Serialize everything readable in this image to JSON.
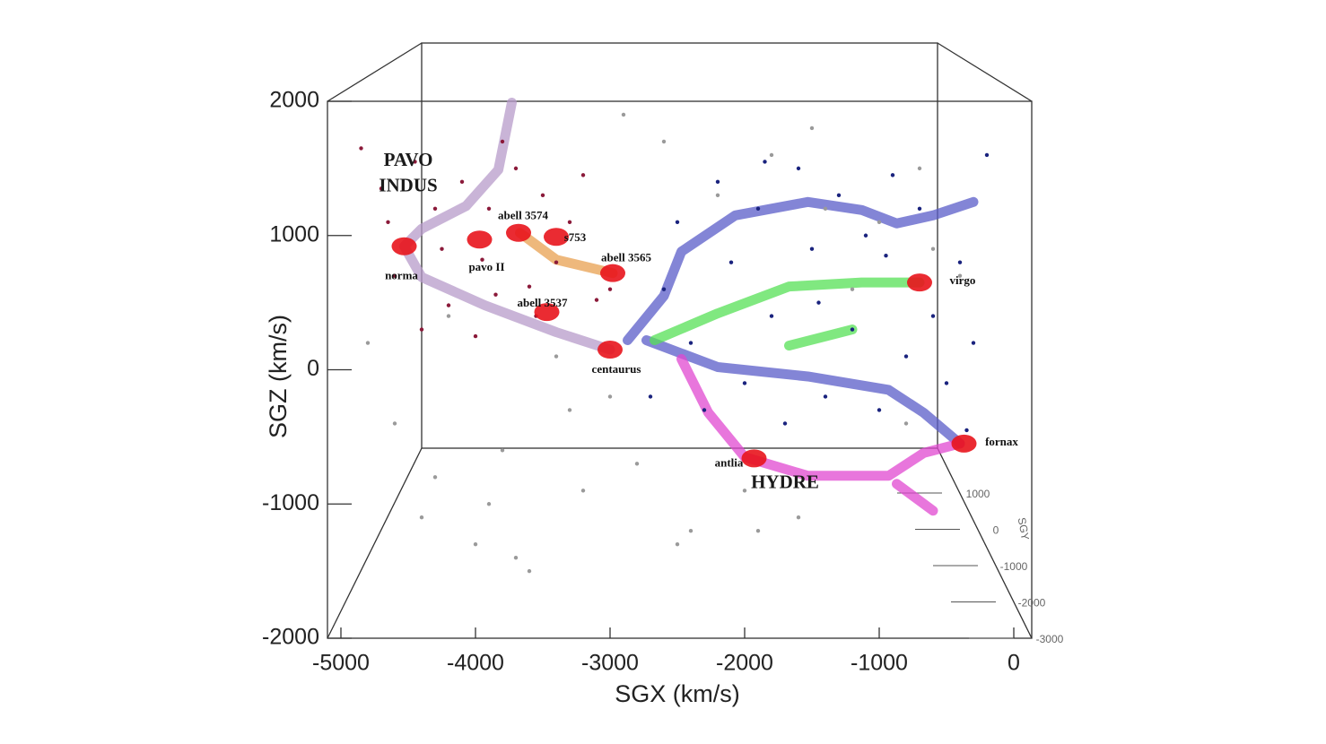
{
  "chart_data": {
    "type": "scatter",
    "x_label": "SGX (km/s)",
    "y_label": "SGZ (km/s)",
    "z_label": "SGY",
    "xlim": [
      -5000,
      0
    ],
    "xticks": [
      -5000,
      -4000,
      -3000,
      -2000,
      -1000,
      0
    ],
    "ylim": [
      -2000,
      2000
    ],
    "yticks": [
      -2000,
      -1000,
      0,
      1000,
      2000
    ],
    "zlim": [
      -3000,
      1000
    ],
    "zticks": [
      -3000,
      -2000,
      -1000,
      0,
      1000
    ],
    "series": [
      {
        "color": "#8b1a3a",
        "x": [
          -4850,
          -4700,
          -4600,
          -4450,
          -4300,
          -4200,
          -4100,
          -3950,
          -3850,
          -3700,
          -3600,
          -3500,
          -3300,
          -3200,
          -3100,
          -4400,
          -4000,
          -3800,
          -3400,
          -4650,
          -3900,
          -3550,
          -4250,
          -3000
        ],
        "values": [
          1650,
          1350,
          700,
          1550,
          1200,
          480,
          1400,
          820,
          560,
          1500,
          620,
          1300,
          1100,
          1450,
          520,
          300,
          250,
          1700,
          800,
          1100,
          1200,
          400,
          900,
          600
        ]
      },
      {
        "color": "#1a237e",
        "x": [
          -2600,
          -2500,
          -2400,
          -2300,
          -2200,
          -2100,
          -2000,
          -1900,
          -1800,
          -1700,
          -1600,
          -1500,
          -1400,
          -1300,
          -1200,
          -1100,
          -1000,
          -900,
          -800,
          -700,
          -600,
          -500,
          -400,
          -300,
          -200,
          -2700,
          -1850,
          -1450,
          -950,
          -350
        ],
        "values": [
          600,
          1100,
          200,
          -300,
          1400,
          800,
          -100,
          1200,
          400,
          -400,
          1500,
          900,
          -200,
          1300,
          300,
          1000,
          -300,
          1450,
          100,
          1200,
          400,
          -100,
          800,
          200,
          1600,
          -200,
          1550,
          500,
          850,
          -450
        ]
      },
      {
        "color": "#9a9a9a",
        "x": [
          -4800,
          -4600,
          -4400,
          -4200,
          -4000,
          -3800,
          -3600,
          -3400,
          -3200,
          -3000,
          -2800,
          -2600,
          -2400,
          -2200,
          -2000,
          -1800,
          -1600,
          -1400,
          -1200,
          -1000,
          -800,
          -600,
          -400,
          -3900,
          -3700,
          -2500,
          -1900,
          -1500,
          -4300,
          -700,
          -2900,
          -3300
        ],
        "values": [
          200,
          -400,
          -1100,
          400,
          -1300,
          -600,
          -1500,
          100,
          -900,
          -200,
          -700,
          1700,
          -1200,
          1300,
          -900,
          1600,
          -1100,
          1200,
          600,
          1100,
          -400,
          900,
          700,
          -1000,
          -1400,
          -1300,
          -1200,
          1800,
          -800,
          1500,
          1900,
          -300
        ]
      }
    ],
    "filaments": [
      {
        "color": "#b79bc9",
        "x": [
          -3730,
          -3830,
          -4070,
          -4400,
          -4530,
          null,
          -4530,
          -4400,
          -3930,
          -3400,
          -3000
        ],
        "values": [
          1990,
          1490,
          1220,
          1050,
          920,
          null,
          920,
          690,
          480,
          280,
          150
        ]
      },
      {
        "color": "#e8a050",
        "x": [
          -3670,
          -3400,
          -2980
        ],
        "values": [
          1020,
          820,
          720
        ]
      },
      {
        "color": "#5a5cc8",
        "x": [
          -2870,
          -2600,
          -2470,
          -2070,
          -1530,
          -1130,
          -870,
          -600,
          -300,
          null,
          -2730,
          -2200,
          -1530,
          -930,
          -670,
          -400
        ],
        "values": [
          220,
          550,
          880,
          1150,
          1250,
          1190,
          1090,
          1150,
          1250,
          null,
          220,
          20,
          -50,
          -150,
          -320,
          -550
        ]
      },
      {
        "color": "#55e055",
        "x": [
          -2670,
          -2200,
          -1670,
          -1130,
          -700,
          null,
          -1670,
          -1200
        ],
        "values": [
          220,
          420,
          620,
          650,
          650,
          null,
          180,
          300
        ]
      },
      {
        "color": "#e048d0",
        "x": [
          -2470,
          -2270,
          -2000,
          -1530,
          -930,
          -670,
          -400,
          null,
          -870,
          -600
        ],
        "values": [
          80,
          -320,
          -650,
          -790,
          -790,
          -620,
          -550,
          null,
          -850,
          -1050
        ]
      }
    ],
    "clusters": [
      {
        "label": "norma",
        "x": -4530,
        "y": 920
      },
      {
        "label": "pavo II",
        "x": -3970,
        "y": 970
      },
      {
        "label": "abell 3574",
        "x": -3680,
        "y": 1020
      },
      {
        "label": "s753",
        "x": -3400,
        "y": 990
      },
      {
        "label": "abell 3565",
        "x": -2980,
        "y": 720
      },
      {
        "label": "abell 3537",
        "x": -3470,
        "y": 430
      },
      {
        "label": "centaurus",
        "x": -3000,
        "y": 150
      },
      {
        "label": "virgo",
        "x": -700,
        "y": 650
      },
      {
        "label": "fornax",
        "x": -370,
        "y": -550
      },
      {
        "label": "antlia",
        "x": -1930,
        "y": -660
      }
    ],
    "regions": [
      {
        "label": "PAVO",
        "x": -4500,
        "y": 1550
      },
      {
        "label": "INDUS",
        "x": -4500,
        "y": 1360
      },
      {
        "label": "HYDRE",
        "x": -1700,
        "y": -850
      }
    ]
  }
}
